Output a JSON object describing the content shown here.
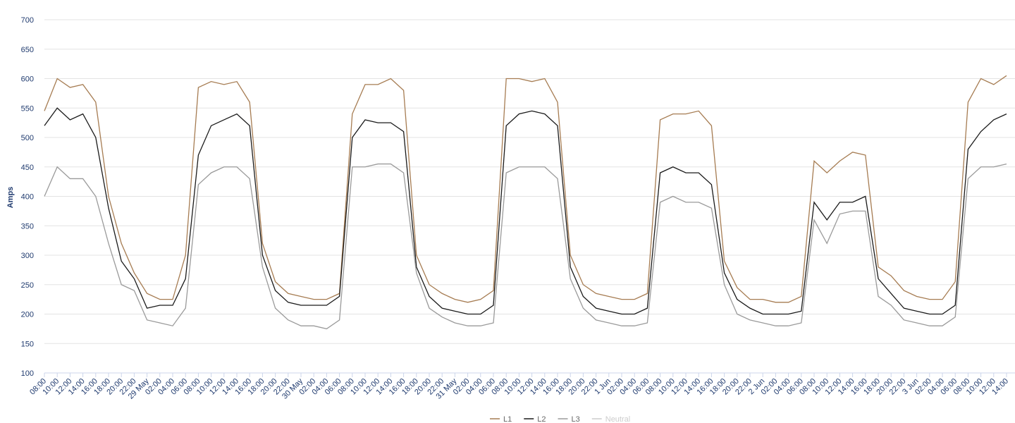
{
  "chart_data": {
    "type": "line",
    "y_label": "Amps",
    "categories": [
      "08:00",
      "10:00",
      "12:00",
      "14:00",
      "16:00",
      "18:00",
      "20:00",
      "22:00",
      "29 May",
      "02:00",
      "04:00",
      "06:00",
      "08:00",
      "10:00",
      "12:00",
      "14:00",
      "16:00",
      "18:00",
      "20:00",
      "22:00",
      "30 May",
      "02:00",
      "04:00",
      "06:00",
      "08:00",
      "10:00",
      "12:00",
      "14:00",
      "16:00",
      "18:00",
      "20:00",
      "22:00",
      "31 May",
      "02:00",
      "04:00",
      "06:00",
      "08:00",
      "10:00",
      "12:00",
      "14:00",
      "16:00",
      "18:00",
      "20:00",
      "22:00",
      "1 Jun",
      "02:00",
      "04:00",
      "06:00",
      "08:00",
      "10:00",
      "12:00",
      "14:00",
      "16:00",
      "18:00",
      "20:00",
      "22:00",
      "2 Jun",
      "02:00",
      "04:00",
      "06:00",
      "08:00",
      "10:00",
      "12:00",
      "14:00",
      "16:00",
      "18:00",
      "20:00",
      "22:00",
      "3 Jun",
      "02:00",
      "04:00",
      "06:00",
      "08:00",
      "10:00",
      "12:00",
      "14:00"
    ],
    "series": [
      {
        "name": "L1",
        "color": "#a67c52",
        "values": [
          545,
          600,
          585,
          590,
          560,
          400,
          320,
          270,
          235,
          225,
          225,
          300,
          585,
          595,
          590,
          595,
          560,
          320,
          255,
          235,
          230,
          225,
          225,
          235,
          540,
          590,
          590,
          600,
          580,
          300,
          250,
          235,
          225,
          220,
          225,
          240,
          600,
          600,
          595,
          600,
          560,
          300,
          250,
          235,
          230,
          225,
          225,
          235,
          530,
          540,
          540,
          545,
          520,
          290,
          245,
          225,
          225,
          220,
          220,
          230,
          460,
          440,
          460,
          475,
          470,
          280,
          265,
          240,
          230,
          225,
          225,
          255,
          560,
          600,
          590,
          605
        ]
      },
      {
        "name": "L2",
        "color": "#1a1a1a",
        "values": [
          520,
          550,
          530,
          540,
          500,
          380,
          290,
          260,
          210,
          215,
          215,
          260,
          470,
          520,
          530,
          540,
          520,
          300,
          240,
          220,
          215,
          215,
          215,
          230,
          500,
          530,
          525,
          525,
          510,
          280,
          230,
          210,
          205,
          200,
          200,
          215,
          520,
          540,
          545,
          540,
          520,
          280,
          230,
          210,
          205,
          200,
          200,
          210,
          440,
          450,
          440,
          440,
          420,
          270,
          225,
          210,
          200,
          200,
          200,
          205,
          390,
          360,
          390,
          390,
          400,
          260,
          235,
          210,
          205,
          200,
          200,
          215,
          480,
          510,
          530,
          540
        ]
      },
      {
        "name": "L3",
        "color": "#9a9a9a",
        "values": [
          400,
          450,
          430,
          430,
          400,
          320,
          250,
          240,
          190,
          185,
          180,
          210,
          420,
          440,
          450,
          450,
          430,
          280,
          210,
          190,
          180,
          180,
          175,
          190,
          450,
          450,
          455,
          455,
          440,
          270,
          210,
          195,
          185,
          180,
          180,
          185,
          440,
          450,
          450,
          450,
          430,
          260,
          210,
          190,
          185,
          180,
          180,
          185,
          390,
          400,
          390,
          390,
          380,
          250,
          200,
          190,
          185,
          180,
          180,
          185,
          360,
          320,
          370,
          375,
          375,
          230,
          215,
          190,
          185,
          180,
          180,
          195,
          430,
          450,
          450,
          455
        ]
      },
      {
        "name": "Neutral",
        "color": "#cccccc",
        "visible": false
      }
    ],
    "ylim": [
      100,
      700
    ],
    "yticks": [
      100,
      150,
      200,
      250,
      300,
      350,
      400,
      450,
      500,
      550,
      600,
      650,
      700
    ],
    "grid": true
  }
}
